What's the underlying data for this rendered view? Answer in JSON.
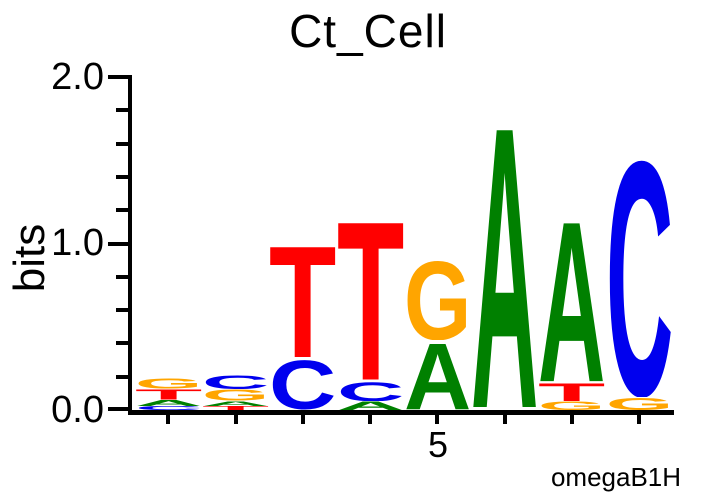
{
  "title": "Ct_Cell",
  "y_axis": {
    "label": "bits",
    "tick_labels": [
      "2.0",
      "1.0",
      "0.0"
    ]
  },
  "x_axis": {
    "tick_label": "5"
  },
  "footer": "omegaB1H",
  "chart_data": {
    "type": "sequence_logo",
    "title": "Ct_Cell",
    "ylabel": "bits",
    "ylim": [
      0,
      2
    ],
    "y_major_ticks": [
      0.0,
      1.0,
      2.0
    ],
    "y_minor_tick_step": 0.2,
    "num_positions": 8,
    "labeled_x_tick_position": 5,
    "labeled_x_tick_text": "5",
    "annotation": "omegaB1H",
    "grid": false,
    "alphabet_colors": {
      "A": "#008000",
      "C": "#0000EE",
      "G": "#FFA500",
      "T": "#FF0000"
    },
    "positions": [
      {
        "position": 1,
        "stack": [
          {
            "base": "G",
            "bits": 0.065
          },
          {
            "base": "T",
            "bits": 0.065
          },
          {
            "base": "A",
            "bits": 0.035
          },
          {
            "base": "C",
            "bits": 0.025
          }
        ]
      },
      {
        "position": 2,
        "stack": [
          {
            "base": "C",
            "bits": 0.085
          },
          {
            "base": "G",
            "bits": 0.07
          },
          {
            "base": "A",
            "bits": 0.03
          },
          {
            "base": "T",
            "bits": 0.025
          }
        ]
      },
      {
        "position": 3,
        "stack": [
          {
            "base": "T",
            "bits": 0.71
          },
          {
            "base": "C",
            "bits": 0.31
          }
        ]
      },
      {
        "position": 4,
        "stack": [
          {
            "base": "T",
            "bits": 1.01
          },
          {
            "base": "C",
            "bits": 0.12
          },
          {
            "base": "A",
            "bits": 0.055
          }
        ]
      },
      {
        "position": 5,
        "stack": [
          {
            "base": "G",
            "bits": 0.5
          },
          {
            "base": "A",
            "bits": 0.42
          }
        ]
      },
      {
        "position": 6,
        "stack": [
          {
            "base": "A",
            "bits": 1.79
          }
        ]
      },
      {
        "position": 7,
        "stack": [
          {
            "base": "A",
            "bits": 1.02
          },
          {
            "base": "T",
            "bits": 0.11
          },
          {
            "base": "G",
            "bits": 0.055
          }
        ]
      },
      {
        "position": 8,
        "stack": [
          {
            "base": "C",
            "bits": 1.49
          },
          {
            "base": "G",
            "bits": 0.08
          }
        ]
      }
    ]
  }
}
